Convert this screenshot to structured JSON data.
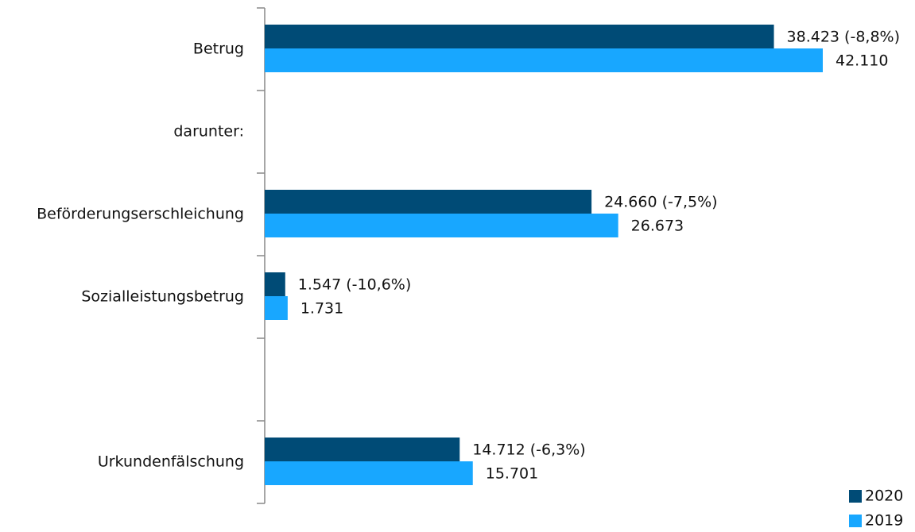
{
  "chart_data": {
    "type": "bar",
    "orientation": "horizontal",
    "categories": [
      "Betrug",
      "darunter:",
      "Beförderungserschleichung",
      "Sozialleistungsbetrug",
      null,
      "Urkundenfälschung"
    ],
    "series": [
      {
        "name": "2020",
        "color": "#004b76",
        "values": [
          38423,
          null,
          24660,
          1547,
          null,
          14712
        ],
        "value_labels": [
          "38.423 (-8,8%)",
          null,
          "24.660 (-7,5%)",
          "1.547 (-10,6%)",
          null,
          "14.712 (-6,3%)"
        ]
      },
      {
        "name": "2019",
        "color": "#18a7ff",
        "values": [
          42110,
          null,
          26673,
          1731,
          null,
          15701
        ],
        "value_labels": [
          "42.110",
          null,
          "26.673",
          "1.731",
          null,
          "15.701"
        ]
      }
    ],
    "legend": "bottom-right"
  }
}
